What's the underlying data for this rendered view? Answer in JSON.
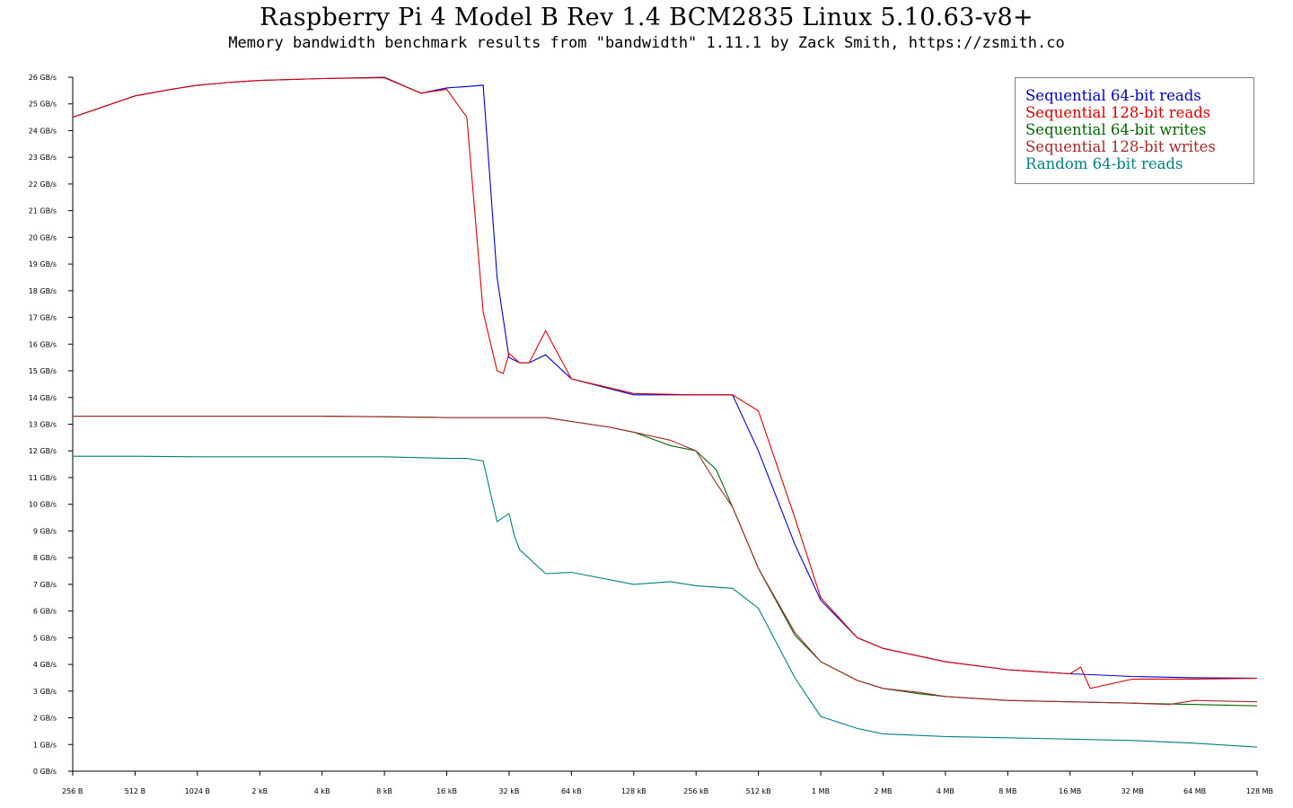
{
  "chart_data": {
    "type": "line",
    "title": "Raspberry Pi 4 Model B Rev 1.4 BCM2835 Linux 5.10.63-v8+",
    "subtitle": "Memory bandwidth benchmark results from \"bandwidth\" 1.11.1 by Zack Smith, https://zsmith.co",
    "xlabel": "",
    "ylabel": "",
    "x_scale": "log2",
    "x_range_bytes": [
      256,
      134217728
    ],
    "x_ticks": [
      {
        "value": 256,
        "label": "256 B"
      },
      {
        "value": 512,
        "label": "512 B"
      },
      {
        "value": 1024,
        "label": "1024 B"
      },
      {
        "value": 2048,
        "label": "2 kB"
      },
      {
        "value": 4096,
        "label": "4 kB"
      },
      {
        "value": 8192,
        "label": "8 kB"
      },
      {
        "value": 16384,
        "label": "16 kB"
      },
      {
        "value": 32768,
        "label": "32 kB"
      },
      {
        "value": 65536,
        "label": "64 kB"
      },
      {
        "value": 131072,
        "label": "128 kB"
      },
      {
        "value": 262144,
        "label": "256 kB"
      },
      {
        "value": 524288,
        "label": "512 kB"
      },
      {
        "value": 1048576,
        "label": "1 MB"
      },
      {
        "value": 2097152,
        "label": "2 MB"
      },
      {
        "value": 4194304,
        "label": "4 MB"
      },
      {
        "value": 8388608,
        "label": "8 MB"
      },
      {
        "value": 16777216,
        "label": "16 MB"
      },
      {
        "value": 33554432,
        "label": "32 MB"
      },
      {
        "value": 67108864,
        "label": "64 MB"
      },
      {
        "value": 134217728,
        "label": "128 MB"
      }
    ],
    "ylim": [
      0,
      26
    ],
    "y_ticks": [
      {
        "value": 0,
        "label": "0 GB/s"
      },
      {
        "value": 1,
        "label": "1 GB/s"
      },
      {
        "value": 2,
        "label": "2 GB/s"
      },
      {
        "value": 3,
        "label": "3 GB/s"
      },
      {
        "value": 4,
        "label": "4 GB/s"
      },
      {
        "value": 5,
        "label": "5 GB/s"
      },
      {
        "value": 6,
        "label": "6 GB/s"
      },
      {
        "value": 7,
        "label": "7 GB/s"
      },
      {
        "value": 8,
        "label": "8 GB/s"
      },
      {
        "value": 9,
        "label": "9 GB/s"
      },
      {
        "value": 10,
        "label": "10 GB/s"
      },
      {
        "value": 11,
        "label": "11 GB/s"
      },
      {
        "value": 12,
        "label": "12 GB/s"
      },
      {
        "value": 13,
        "label": "13 GB/s"
      },
      {
        "value": 14,
        "label": "14 GB/s"
      },
      {
        "value": 15,
        "label": "15 GB/s"
      },
      {
        "value": 16,
        "label": "16 GB/s"
      },
      {
        "value": 17,
        "label": "17 GB/s"
      },
      {
        "value": 18,
        "label": "18 GB/s"
      },
      {
        "value": 19,
        "label": "19 GB/s"
      },
      {
        "value": 20,
        "label": "20 GB/s"
      },
      {
        "value": 21,
        "label": "21 GB/s"
      },
      {
        "value": 22,
        "label": "22 GB/s"
      },
      {
        "value": 23,
        "label": "23 GB/s"
      },
      {
        "value": 24,
        "label": "24 GB/s"
      },
      {
        "value": 25,
        "label": "25 GB/s"
      },
      {
        "value": 26,
        "label": "26 GB/s"
      }
    ],
    "grid": false,
    "legend_position": "top-right",
    "series": [
      {
        "name": "Sequential 64-bit reads",
        "color": "#0000cc",
        "x": [
          256,
          512,
          768,
          1024,
          1536,
          2048,
          4096,
          8192,
          12288,
          16384,
          20480,
          24576,
          28672,
          32768,
          36864,
          40960,
          49152,
          65536,
          131072,
          262144,
          393216,
          524288,
          786432,
          1048576,
          1572864,
          2097152,
          4194304,
          8388608,
          16777216,
          33554432,
          67108864,
          134217728
        ],
        "y": [
          24.5,
          25.3,
          25.55,
          25.7,
          25.82,
          25.88,
          25.95,
          26.0,
          25.4,
          25.6,
          25.65,
          25.7,
          18.5,
          15.5,
          15.3,
          15.3,
          15.6,
          14.7,
          14.1,
          14.1,
          14.1,
          12.0,
          8.5,
          6.4,
          5.0,
          4.6,
          4.1,
          3.8,
          3.65,
          3.55,
          3.5,
          3.48
        ]
      },
      {
        "name": "Sequential 128-bit reads",
        "color": "#dd0000",
        "x": [
          256,
          512,
          768,
          1024,
          1536,
          2048,
          4096,
          8192,
          12288,
          16384,
          20480,
          24576,
          28672,
          30720,
          32768,
          36864,
          40960,
          49152,
          65536,
          131072,
          262144,
          393216,
          524288,
          786432,
          1048576,
          1572864,
          2097152,
          4194304,
          8388608,
          16777216,
          18874368,
          20971520,
          33554432,
          67108864,
          134217728
        ],
        "y": [
          24.5,
          25.3,
          25.55,
          25.7,
          25.82,
          25.88,
          25.95,
          25.98,
          25.4,
          25.55,
          24.5,
          17.2,
          15.0,
          14.9,
          15.65,
          15.3,
          15.3,
          16.5,
          14.7,
          14.15,
          14.1,
          14.1,
          13.5,
          9.5,
          6.5,
          5.0,
          4.6,
          4.1,
          3.8,
          3.65,
          3.9,
          3.1,
          3.45,
          3.45,
          3.48
        ]
      },
      {
        "name": "Sequential 64-bit writes",
        "color": "#006600",
        "x": [
          256,
          512,
          1024,
          2048,
          4096,
          8192,
          16384,
          24576,
          32768,
          49152,
          65536,
          98304,
          131072,
          196608,
          262144,
          327680,
          393216,
          524288,
          786432,
          1048576,
          1572864,
          2097152,
          3145728,
          4194304,
          8388608,
          16777216,
          33554432,
          67108864,
          134217728
        ],
        "y": [
          13.3,
          13.3,
          13.3,
          13.3,
          13.3,
          13.28,
          13.25,
          13.25,
          13.25,
          13.25,
          13.1,
          12.9,
          12.7,
          12.2,
          12.0,
          11.3,
          9.9,
          7.6,
          5.1,
          4.1,
          3.4,
          3.1,
          2.9,
          2.8,
          2.65,
          2.6,
          2.55,
          2.5,
          2.45
        ]
      },
      {
        "name": "Sequential 128-bit writes",
        "color": "#a52a2a",
        "x": [
          256,
          512,
          1024,
          2048,
          4096,
          8192,
          16384,
          24576,
          32768,
          49152,
          65536,
          98304,
          131072,
          196608,
          262144,
          327680,
          393216,
          524288,
          786432,
          1048576,
          1572864,
          2097152,
          3145728,
          4194304,
          8388608,
          16777216,
          33554432,
          50331648,
          67108864,
          134217728
        ],
        "y": [
          13.3,
          13.3,
          13.3,
          13.3,
          13.3,
          13.28,
          13.25,
          13.25,
          13.25,
          13.25,
          13.1,
          12.9,
          12.7,
          12.4,
          12.0,
          10.8,
          9.9,
          7.6,
          5.2,
          4.1,
          3.4,
          3.1,
          2.95,
          2.8,
          2.65,
          2.6,
          2.55,
          2.5,
          2.65,
          2.6
        ]
      },
      {
        "name": "Random 64-bit reads",
        "color": "#008080",
        "x": [
          256,
          512,
          1024,
          2048,
          4096,
          8192,
          16384,
          20480,
          24576,
          28672,
          32768,
          34816,
          36864,
          49152,
          65536,
          131072,
          196608,
          262144,
          393216,
          524288,
          786432,
          1048576,
          1572864,
          2097152,
          4194304,
          8388608,
          16777216,
          33554432,
          67108864,
          134217728
        ],
        "y": [
          11.8,
          11.8,
          11.78,
          11.78,
          11.78,
          11.78,
          11.72,
          11.72,
          11.62,
          9.35,
          9.65,
          8.8,
          8.3,
          7.4,
          7.45,
          7.0,
          7.1,
          6.95,
          6.85,
          6.1,
          3.5,
          2.05,
          1.6,
          1.4,
          1.3,
          1.25,
          1.2,
          1.15,
          1.05,
          0.9
        ]
      }
    ]
  }
}
